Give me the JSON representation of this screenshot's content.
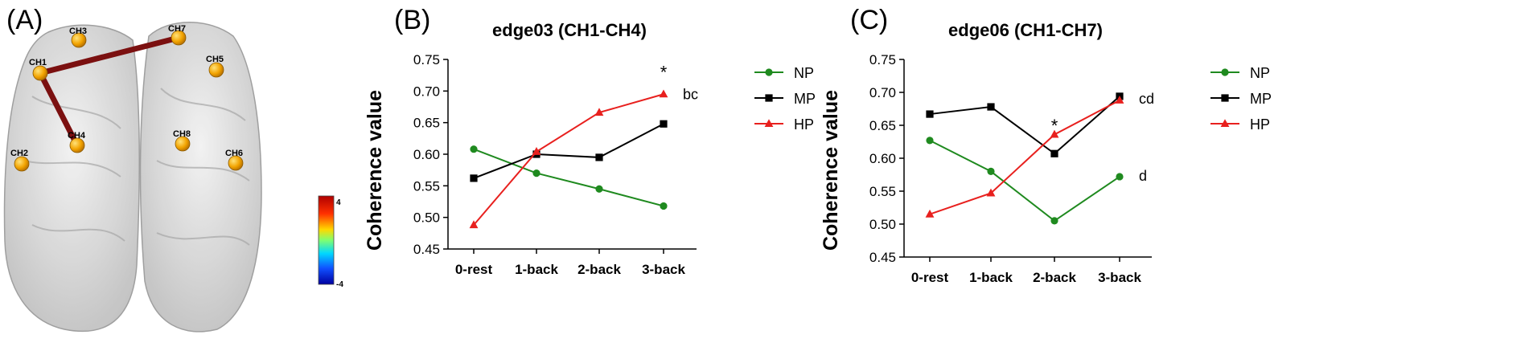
{
  "colors": {
    "NP": "#1f8a1f",
    "MP": "#000000",
    "HP": "#e8201e",
    "edge": "#7b1010",
    "node": "#f2a300"
  },
  "brain": {
    "panel_label": "(A)",
    "channels": [
      {
        "id": "CH1",
        "label": "CH1"
      },
      {
        "id": "CH2",
        "label": "CH2"
      },
      {
        "id": "CH3",
        "label": "CH3"
      },
      {
        "id": "CH4",
        "label": "CH4"
      },
      {
        "id": "CH5",
        "label": "CH5"
      },
      {
        "id": "CH6",
        "label": "CH6"
      },
      {
        "id": "CH7",
        "label": "CH7"
      },
      {
        "id": "CH8",
        "label": "CH8"
      }
    ],
    "edges": [
      [
        "CH1",
        "CH7"
      ],
      [
        "CH1",
        "CH4"
      ]
    ],
    "colorbar": {
      "max_label": "4",
      "min_label": "-4"
    }
  },
  "chart_data": [
    {
      "type": "line",
      "panel_label": "(B)",
      "title": "edge03 (CH1-CH4)",
      "xlabel": "",
      "ylabel": "Coherence value",
      "categories": [
        "0-rest",
        "1-back",
        "2-back",
        "3-back"
      ],
      "ylim": [
        0.45,
        0.75
      ],
      "yticks": [
        "0.45",
        "0.50",
        "0.55",
        "0.60",
        "0.65",
        "0.70",
        "0.75"
      ],
      "series": [
        {
          "name": "NP",
          "marker": "circle",
          "values": [
            0.608,
            0.57,
            0.545,
            0.518
          ]
        },
        {
          "name": "MP",
          "marker": "square",
          "values": [
            0.562,
            0.6,
            0.595,
            0.648
          ]
        },
        {
          "name": "HP",
          "marker": "triangle",
          "values": [
            0.488,
            0.604,
            0.666,
            0.695
          ]
        }
      ],
      "annotations": [
        {
          "text": "*",
          "category": "3-back",
          "y": 0.73,
          "kind": "star"
        },
        {
          "text": "bc",
          "category": "3-back",
          "y": 0.695,
          "kind": "letter"
        }
      ],
      "legend": "right"
    },
    {
      "type": "line",
      "panel_label": "(C)",
      "title": "edge06 (CH1-CH7)",
      "xlabel": "",
      "ylabel": "Coherence value",
      "categories": [
        "0-rest",
        "1-back",
        "2-back",
        "3-back"
      ],
      "ylim": [
        0.45,
        0.75
      ],
      "yticks": [
        "0.45",
        "0.50",
        "0.55",
        "0.60",
        "0.65",
        "0.70",
        "0.75"
      ],
      "series": [
        {
          "name": "NP",
          "marker": "circle",
          "values": [
            0.627,
            0.58,
            0.505,
            0.572
          ]
        },
        {
          "name": "MP",
          "marker": "square",
          "values": [
            0.667,
            0.678,
            0.607,
            0.694
          ]
        },
        {
          "name": "HP",
          "marker": "triangle",
          "values": [
            0.515,
            0.547,
            0.636,
            0.688
          ]
        }
      ],
      "annotations": [
        {
          "text": "*",
          "category": "2-back",
          "y": 0.65,
          "kind": "star"
        },
        {
          "text": "cd",
          "category": "3-back",
          "y": 0.69,
          "kind": "letter"
        },
        {
          "text": "d",
          "category": "3-back",
          "y": 0.573,
          "kind": "letter"
        }
      ],
      "legend": "right"
    }
  ]
}
